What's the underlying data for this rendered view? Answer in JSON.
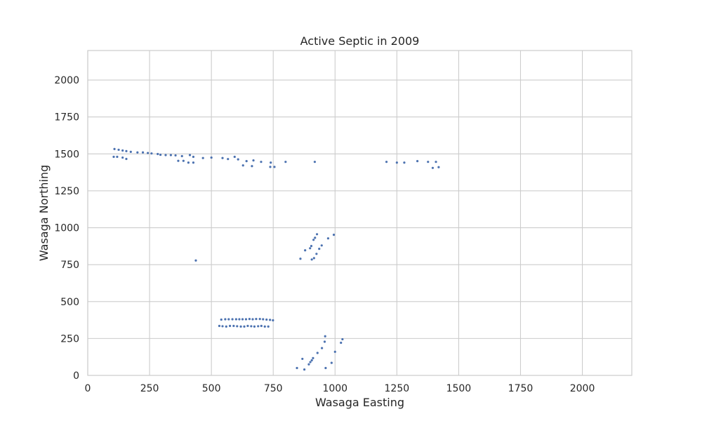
{
  "chart_data": {
    "type": "scatter",
    "title": "Active Septic in 2009",
    "xlabel": "Wasaga Easting",
    "ylabel": "Wasaga Northing",
    "xlim": [
      0,
      2200
    ],
    "ylim": [
      0,
      2200
    ],
    "xticks": [
      0,
      250,
      500,
      750,
      1000,
      1250,
      1500,
      1750,
      2000
    ],
    "yticks": [
      0,
      250,
      500,
      750,
      1000,
      1250,
      1500,
      1750,
      2000
    ],
    "grid": true,
    "marker_color": "#4c72b0",
    "series": [
      {
        "points": [
          [
            108,
            1533
          ],
          [
            125,
            1528
          ],
          [
            141,
            1523
          ],
          [
            156,
            1519
          ],
          [
            174,
            1514
          ],
          [
            201,
            1510
          ],
          [
            223,
            1510
          ],
          [
            243,
            1506
          ],
          [
            258,
            1503
          ],
          [
            283,
            1499
          ],
          [
            294,
            1494
          ],
          [
            315,
            1492
          ],
          [
            336,
            1492
          ],
          [
            355,
            1490
          ],
          [
            381,
            1485
          ],
          [
            413,
            1492
          ],
          [
            427,
            1480
          ],
          [
            466,
            1472
          ],
          [
            500,
            1475
          ],
          [
            545,
            1472
          ],
          [
            567,
            1465
          ],
          [
            594,
            1480
          ],
          [
            608,
            1463
          ],
          [
            642,
            1451
          ],
          [
            670,
            1456
          ],
          [
            701,
            1446
          ],
          [
            740,
            1441
          ],
          [
            800,
            1446
          ],
          [
            918,
            1446
          ],
          [
            105,
            1480
          ],
          [
            119,
            1480
          ],
          [
            141,
            1475
          ],
          [
            156,
            1466
          ],
          [
            366,
            1453
          ],
          [
            387,
            1453
          ],
          [
            407,
            1441
          ],
          [
            427,
            1441
          ],
          [
            628,
            1422
          ],
          [
            664,
            1417
          ],
          [
            738,
            1412
          ],
          [
            755,
            1412
          ],
          [
            1208,
            1446
          ],
          [
            1250,
            1441
          ],
          [
            1280,
            1441
          ],
          [
            1333,
            1451
          ],
          [
            1376,
            1446
          ],
          [
            1408,
            1446
          ],
          [
            1395,
            1405
          ],
          [
            1419,
            1410
          ],
          [
            437,
            778
          ],
          [
            860,
            790
          ],
          [
            879,
            847
          ],
          [
            899,
            861
          ],
          [
            904,
            876
          ],
          [
            913,
            918
          ],
          [
            919,
            932
          ],
          [
            927,
            956
          ],
          [
            906,
            785
          ],
          [
            915,
            794
          ],
          [
            925,
            823
          ],
          [
            936,
            857
          ],
          [
            946,
            880
          ],
          [
            972,
            928
          ],
          [
            995,
            952
          ],
          [
            540,
            378
          ],
          [
            556,
            380
          ],
          [
            570,
            380
          ],
          [
            585,
            380
          ],
          [
            600,
            380
          ],
          [
            613,
            380
          ],
          [
            626,
            380
          ],
          [
            640,
            380
          ],
          [
            654,
            382
          ],
          [
            667,
            380
          ],
          [
            681,
            382
          ],
          [
            696,
            382
          ],
          [
            709,
            380
          ],
          [
            723,
            378
          ],
          [
            737,
            376
          ],
          [
            749,
            373
          ],
          [
            532,
            335
          ],
          [
            545,
            333
          ],
          [
            560,
            331
          ],
          [
            575,
            335
          ],
          [
            590,
            335
          ],
          [
            604,
            333
          ],
          [
            619,
            331
          ],
          [
            633,
            331
          ],
          [
            647,
            335
          ],
          [
            661,
            333
          ],
          [
            674,
            331
          ],
          [
            689,
            333
          ],
          [
            702,
            335
          ],
          [
            716,
            331
          ],
          [
            730,
            331
          ],
          [
            846,
            50
          ],
          [
            868,
            112
          ],
          [
            876,
            40
          ],
          [
            894,
            75
          ],
          [
            900,
            90
          ],
          [
            906,
            102
          ],
          [
            911,
            117
          ],
          [
            929,
            152
          ],
          [
            947,
            185
          ],
          [
            958,
            228
          ],
          [
            960,
            265
          ],
          [
            962,
            50
          ],
          [
            986,
            85
          ],
          [
            1000,
            160
          ],
          [
            1024,
            221
          ],
          [
            1030,
            245
          ]
        ]
      }
    ]
  }
}
